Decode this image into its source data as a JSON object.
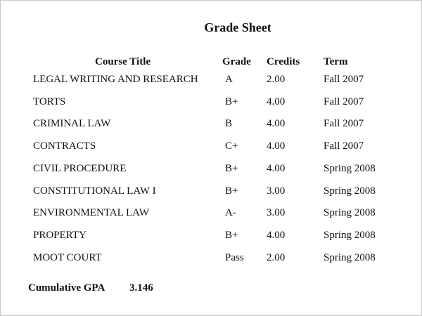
{
  "title": "Grade Sheet",
  "headers": {
    "course": "Course Title",
    "grade": "Grade",
    "credits": "Credits",
    "term": "Term"
  },
  "rows": [
    {
      "course": "LEGAL WRITING AND RESEARCH",
      "grade": "A",
      "credits": "2.00",
      "term": "Fall 2007"
    },
    {
      "course": "TORTS",
      "grade": "B+",
      "credits": "4.00",
      "term": "Fall 2007"
    },
    {
      "course": "CRIMINAL LAW",
      "grade": "B",
      "credits": "4.00",
      "term": "Fall 2007"
    },
    {
      "course": "CONTRACTS",
      "grade": "C+",
      "credits": "4.00",
      "term": "Fall 2007"
    },
    {
      "course": "CIVIL PROCEDURE",
      "grade": "B+",
      "credits": "4.00",
      "term": "Spring 2008"
    },
    {
      "course": "CONSTITUTIONAL LAW I",
      "grade": "B+",
      "credits": "3.00",
      "term": "Spring 2008"
    },
    {
      "course": "ENVIRONMENTAL LAW",
      "grade": "A-",
      "credits": "3.00",
      "term": "Spring 2008"
    },
    {
      "course": "PROPERTY",
      "grade": "B+",
      "credits": "4.00",
      "term": "Spring 2008"
    },
    {
      "course": "MOOT COURT",
      "grade": "Pass",
      "credits": "2.00",
      "term": "Spring 2008"
    }
  ],
  "gpa": {
    "label": "Cumulative GPA",
    "value": "3.146"
  }
}
